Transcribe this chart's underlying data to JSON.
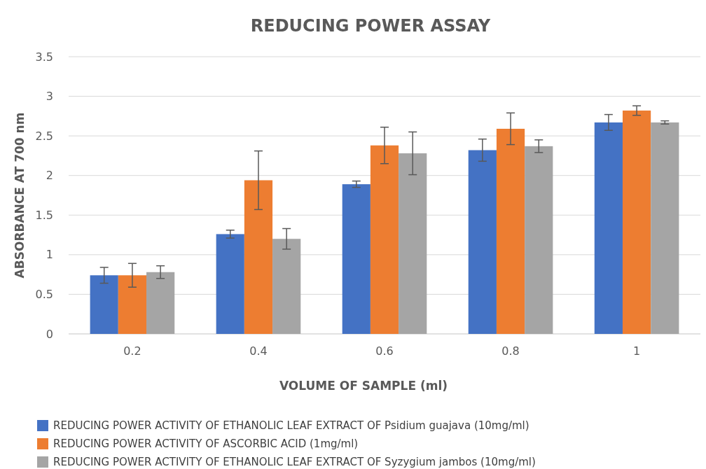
{
  "chart_data": {
    "type": "bar",
    "title": "REDUCING POWER ASSAY",
    "xlabel": "VOLUME OF SAMPLE (ml)",
    "ylabel": "ABSORBANCE AT 700 nm",
    "categories": [
      "0.2",
      "0.4",
      "0.6",
      "0.8",
      "1"
    ],
    "ylim": [
      0,
      3.5
    ],
    "yticks": [
      0,
      0.5,
      1,
      1.5,
      2,
      2.5,
      3,
      3.5
    ],
    "grid": "y",
    "legend": "bottom",
    "series": [
      {
        "name": "REDUCING POWER ACTIVITY OF ETHANOLIC LEAF EXTRACT OF Psidium guajava (10mg/ml)",
        "color": "#4472c4",
        "values": [
          0.74,
          1.26,
          1.89,
          2.32,
          2.67
        ],
        "errors": [
          0.1,
          0.05,
          0.04,
          0.14,
          0.1
        ]
      },
      {
        "name": "REDUCING POWER ACTIVITY OF ASCORBIC ACID (1mg/ml)",
        "color": "#ed7d31",
        "values": [
          0.74,
          1.94,
          2.38,
          2.59,
          2.82
        ],
        "errors": [
          0.15,
          0.37,
          0.23,
          0.2,
          0.06
        ]
      },
      {
        "name": "REDUCING POWER ACTIVITY OF ETHANOLIC LEAF EXTRACT OF Syzygium jambos (10mg/ml)",
        "color": "#a5a5a5",
        "values": [
          0.78,
          1.2,
          2.28,
          2.37,
          2.67
        ],
        "errors": [
          0.08,
          0.13,
          0.27,
          0.08,
          0.02
        ]
      }
    ]
  }
}
